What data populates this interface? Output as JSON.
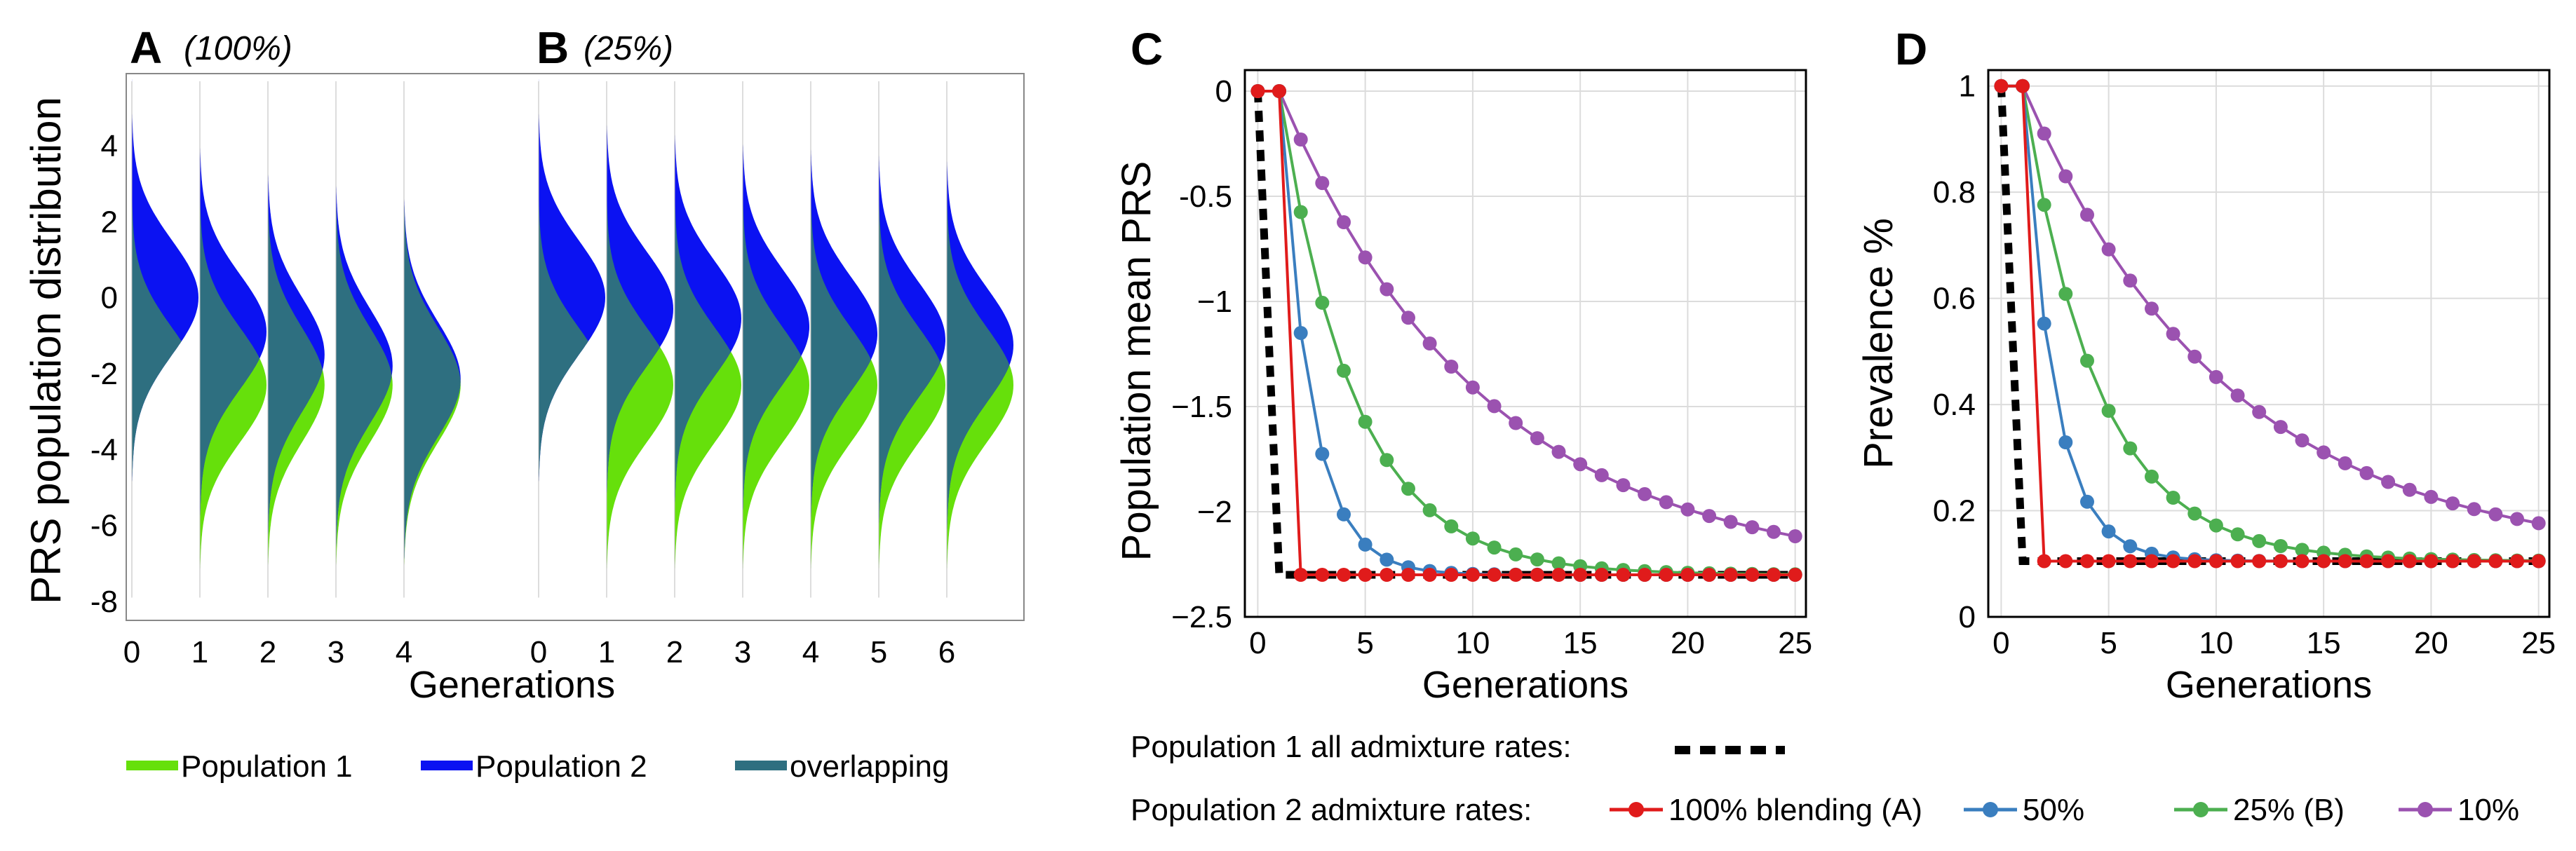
{
  "colors": {
    "pop1": "#66e00b",
    "pop2": "#0b12f2",
    "overlap": "#2e6f80",
    "mix100": "#e01b1b",
    "mix50": "#3a7ebf",
    "mix25": "#4caf50",
    "mix10": "#9b52b0",
    "dashed": "#000000"
  },
  "chart_data": [
    {
      "panel": "A",
      "type": "area",
      "title": "A",
      "subtitle": "(100%)",
      "xlabel": "Generations",
      "ylabel": "PRS population distribution",
      "xticks": [
        "0",
        "1",
        "2",
        "3",
        "4"
      ],
      "yticks": [
        "4",
        "2",
        "0",
        "-2",
        "-4",
        "-6",
        "-8"
      ],
      "ylim": [
        -8.5,
        5.9
      ],
      "distribution_sd": 1.5,
      "pop1_mean": -2.3,
      "generations": [
        {
          "g": 0,
          "pop2_mean": 0.0,
          "amp": 1.0
        },
        {
          "g": 1,
          "pop2_mean": -0.9,
          "amp": 1.0
        },
        {
          "g": 2,
          "pop2_mean": -1.5,
          "amp": 0.85
        },
        {
          "g": 3,
          "pop2_mean": -1.8,
          "amp": 0.85
        },
        {
          "g": 4,
          "pop2_mean": -2.15,
          "amp": 0.85
        }
      ]
    },
    {
      "panel": "B",
      "type": "area",
      "title": "B",
      "subtitle": "(25%)",
      "xticks": [
        "0",
        "1",
        "2",
        "3",
        "4",
        "5",
        "6"
      ],
      "pop1_mean": -2.3,
      "generations": [
        {
          "g": 0,
          "pop2_mean": 0.0
        },
        {
          "g": 1,
          "pop2_mean": -0.3
        },
        {
          "g": 2,
          "pop2_mean": -0.55
        },
        {
          "g": 3,
          "pop2_mean": -0.77
        },
        {
          "g": 4,
          "pop2_mean": -0.96
        },
        {
          "g": 5,
          "pop2_mean": -1.11
        },
        {
          "g": 6,
          "pop2_mean": -1.25
        }
      ]
    },
    {
      "panel": "C",
      "type": "line",
      "title": "C",
      "xlabel": "Generations",
      "ylabel": "Population mean PRS",
      "xlim": [
        -0.6,
        25.5
      ],
      "ylim": [
        -2.5,
        0.1
      ],
      "xticks": [
        0,
        5,
        10,
        15,
        20,
        25
      ],
      "yticks": [
        0,
        -0.5,
        -1,
        -1.5,
        -2,
        -2.5
      ],
      "ytick_labels": [
        "0",
        "-0.5",
        "−1",
        "−1.5",
        "−2",
        "−2.5"
      ],
      "series": [
        {
          "name": "100% blending (A)",
          "color_key": "mix100",
          "start": 0,
          "target": -2.3,
          "rate": 1.0
        },
        {
          "name": "50%",
          "color_key": "mix50",
          "start": 0,
          "target": -2.3,
          "rate": 0.5
        },
        {
          "name": "25% (B)",
          "color_key": "mix25",
          "start": 0,
          "target": -2.3,
          "rate": 0.25
        },
        {
          "name": "10%",
          "color_key": "mix10",
          "start": 0,
          "target": -2.3,
          "rate": 0.1
        }
      ],
      "pop1_line": {
        "x": [
          0,
          1,
          25
        ],
        "y": [
          0,
          -2.3,
          -2.3
        ]
      }
    },
    {
      "panel": "D",
      "type": "line",
      "title": "D",
      "xlabel": "Generations",
      "ylabel": "Prevalence %",
      "xlim": [
        -0.6,
        25.5
      ],
      "ylim": [
        0,
        1.03
      ],
      "xticks": [
        0,
        5,
        10,
        15,
        20,
        25
      ],
      "yticks": [
        1,
        0.8,
        0.6,
        0.4,
        0.2,
        0
      ],
      "ytick_labels": [
        "1",
        "0.8",
        "0.6",
        "0.4",
        "0.2",
        "0"
      ],
      "series": [
        {
          "name": "100% blending (A)",
          "color_key": "mix100",
          "start": 1.0,
          "target": 0.105,
          "rate": 1.0
        },
        {
          "name": "50%",
          "color_key": "mix50",
          "start": 1.0,
          "target": 0.105,
          "rate": 0.5
        },
        {
          "name": "25% (B)",
          "color_key": "mix25",
          "start": 1.0,
          "target": 0.105,
          "rate": 0.25
        },
        {
          "name": "10%",
          "color_key": "mix10",
          "start": 1.0,
          "target": 0.105,
          "rate": 0.1
        }
      ],
      "pop1_line": {
        "x": [
          0,
          1,
          25
        ],
        "y": [
          1.0,
          0.105,
          0.105
        ]
      }
    }
  ],
  "legend_left": [
    {
      "label": "Population 1",
      "color_key": "pop1"
    },
    {
      "label": "Population 2",
      "color_key": "pop2"
    },
    {
      "label": "overlapping",
      "color_key": "overlap"
    }
  ],
  "legend_right": {
    "pop1_label": "Population 1 all admixture rates:",
    "pop2_label": "Population 2 admixture rates:",
    "items": [
      "100% blending (A)",
      "50%",
      "25% (B)",
      "10%"
    ]
  }
}
